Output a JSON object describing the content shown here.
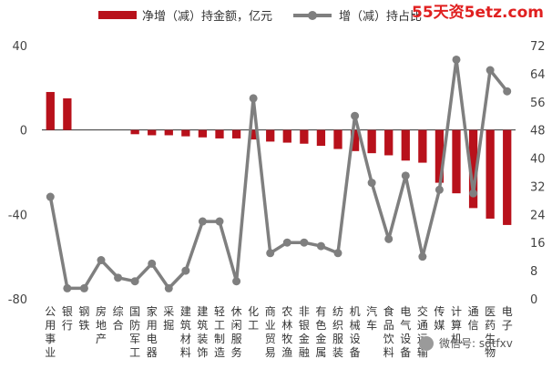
{
  "watermark": "55天资5etz.com",
  "wechat_tag": "微信号: sdtfxv",
  "chart_data": {
    "type": "bar+line",
    "categories": [
      "公用事业",
      "银行",
      "钢铁",
      "房地产",
      "综合",
      "国防军工",
      "家用电器",
      "采掘",
      "建筑材料",
      "建筑装饰",
      "轻工制造",
      "休闲服务",
      "化工",
      "商业贸易",
      "农林牧渔",
      "非银金融",
      "有色金属",
      "纺织服装",
      "机械设备",
      "汽车",
      "食品饮料",
      "电气设备",
      "交通运输",
      "传媒",
      "计算机",
      "通信",
      "医药生物",
      "电子"
    ],
    "series": [
      {
        "name": "净增（减）持金额，亿元",
        "type": "bar",
        "axis": "left",
        "color": "#b8111b",
        "values": [
          18,
          15,
          0,
          0,
          0,
          -2,
          -2.5,
          -2.5,
          -3,
          -3.5,
          -4,
          -4,
          -4.5,
          -5.5,
          -6,
          -6.5,
          -7.5,
          -9,
          -10,
          -11,
          -12,
          -14.5,
          -15.5,
          -25,
          -30,
          -37,
          -42,
          -45
        ]
      },
      {
        "name": "增（减）持占比",
        "type": "line",
        "axis": "right",
        "color": "#7f7f7f",
        "values": [
          29,
          3,
          3,
          11,
          6,
          5,
          10,
          3,
          8,
          22,
          22,
          5,
          57,
          13,
          16,
          16,
          15,
          13,
          52,
          33,
          17,
          35,
          12,
          31,
          68,
          30,
          65,
          59
        ]
      }
    ],
    "left_axis": {
      "ylim": [
        -80,
        40
      ],
      "ticks": [
        "40",
        "0",
        "-40",
        "-80"
      ],
      "tick_values": [
        40,
        0,
        -40,
        -80
      ]
    },
    "right_axis": {
      "ylim": [
        0,
        72
      ],
      "ticks": [
        "72",
        "64",
        "56",
        "48",
        "40",
        "32",
        "24",
        "16",
        "8",
        "0"
      ],
      "tick_values": [
        72,
        64,
        56,
        48,
        40,
        32,
        24,
        16,
        8,
        0
      ]
    },
    "grid": false,
    "legend": "top"
  }
}
